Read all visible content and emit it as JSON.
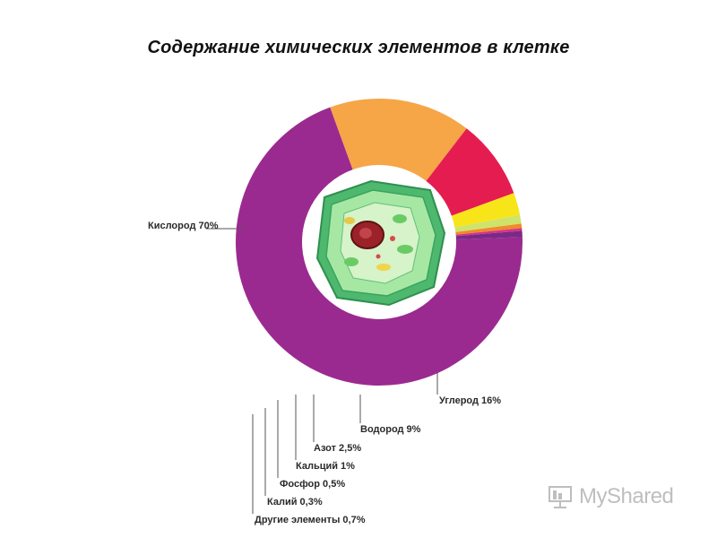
{
  "title": "Содержание химических элементов в клетке",
  "watermark": {
    "text": "MyShared",
    "icon": "presentation-board-icon"
  },
  "center_image": {
    "icon": "plant-cell-illustration"
  },
  "chart_data": {
    "type": "pie",
    "donut": true,
    "title": "Содержание химических элементов в клетке",
    "unit": "%",
    "slices": [
      {
        "name": "Кислород",
        "value": 70,
        "label": "Кислород 70%",
        "color": "#9b2a90"
      },
      {
        "name": "Углерод",
        "value": 16,
        "label": "Углерод 16%",
        "color": "#f6a547"
      },
      {
        "name": "Водород",
        "value": 9,
        "label": "Водород 9%",
        "color": "#e51c4f"
      },
      {
        "name": "Азот",
        "value": 2.5,
        "label": "Азот 2,5%",
        "color": "#f7e51a"
      },
      {
        "name": "Кальций",
        "value": 1,
        "label": "Кальций 1%",
        "color": "#cfe36a"
      },
      {
        "name": "Фосфор",
        "value": 0.5,
        "label": "Фосфор 0,5%",
        "color": "#f08a2c"
      },
      {
        "name": "Калий",
        "value": 0.3,
        "label": "Калий 0,3%",
        "color": "#d6338a"
      },
      {
        "name": "Другие элементы",
        "value": 0.7,
        "label": "Другие элементы 0,7%",
        "color": "#7a2a86"
      }
    ]
  }
}
